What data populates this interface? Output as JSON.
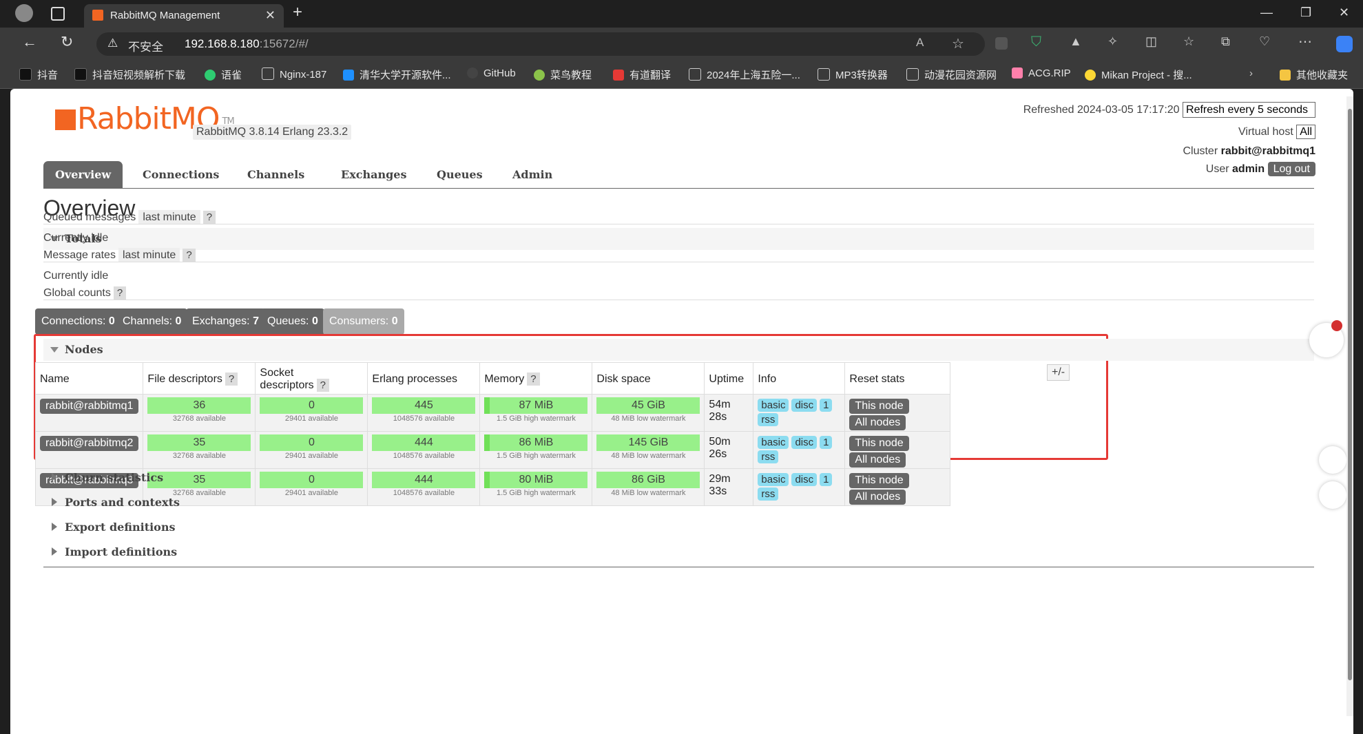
{
  "browser": {
    "tab_title": "RabbitMQ Management",
    "url_warning": "不安全",
    "url_host": "192.168.8.180",
    "url_rest": ":15672/#/",
    "bookmarks": [
      "抖音",
      "抖音短视频解析下载",
      "语雀",
      "Nginx-187",
      "清华大学开源软件...",
      "GitHub",
      "菜鸟教程",
      "有道翻译",
      "2024年上海五险一...",
      "MP3转换器",
      "动漫花园资源网",
      "ACG.RIP",
      "Mikan Project - 搜...",
      "其他收藏夹"
    ]
  },
  "header": {
    "logo_main": "RabbitMQ",
    "logo_tm": "TM",
    "version": "RabbitMQ 3.8.14",
    "erlang": "Erlang 23.3.2",
    "refreshed_label": "Refreshed 2024-03-05 17:17:20",
    "refresh_select": "Refresh every 5 seconds",
    "vhost_label": "Virtual host",
    "vhost_select": "All",
    "cluster_label": "Cluster",
    "cluster_value": "rabbit@rabbitmq1",
    "user_label": "User",
    "user_value": "admin",
    "logout": "Log out"
  },
  "tabs": [
    "Overview",
    "Connections",
    "Channels",
    "Exchanges",
    "Queues",
    "Admin"
  ],
  "page_title": "Overview",
  "totals": {
    "title": "Totals",
    "queued_label": "Queued messages",
    "queued_range": "last minute",
    "help": "?",
    "idle1": "Currently idle",
    "rates_label": "Message rates",
    "rates_range": "last minute",
    "idle2": "Currently idle",
    "global_label": "Global counts"
  },
  "counts": [
    {
      "label": "Connections:",
      "value": "0"
    },
    {
      "label": "Channels:",
      "value": "0"
    },
    {
      "label": "Exchanges:",
      "value": "7"
    },
    {
      "label": "Queues:",
      "value": "0"
    },
    {
      "label": "Consumers:",
      "value": "0"
    }
  ],
  "nodes": {
    "title": "Nodes",
    "columns": [
      "Name",
      "File descriptors",
      "Socket descriptors",
      "Erlang processes",
      "Memory",
      "Disk space",
      "Uptime",
      "Info",
      "Reset stats"
    ],
    "plusminus": "+/-",
    "rows": [
      {
        "name": "rabbit@rabbitmq1",
        "fd": "36",
        "fd_sub": "32768 available",
        "sock": "0",
        "sock_sub": "29401 available",
        "proc": "445",
        "proc_sub": "1048576 available",
        "mem": "87 MiB",
        "mem_sub": "1.5 GiB high watermark",
        "disk": "45 GiB",
        "disk_sub": "48 MiB low watermark",
        "uptime": "54m 28s"
      },
      {
        "name": "rabbit@rabbitmq2",
        "fd": "35",
        "fd_sub": "32768 available",
        "sock": "0",
        "sock_sub": "29401 available",
        "proc": "444",
        "proc_sub": "1048576 available",
        "mem": "86 MiB",
        "mem_sub": "1.5 GiB high watermark",
        "disk": "145 GiB",
        "disk_sub": "48 MiB low watermark",
        "uptime": "50m 26s"
      },
      {
        "name": "rabbit@rabbitmq3",
        "fd": "35",
        "fd_sub": "32768 available",
        "sock": "0",
        "sock_sub": "29401 available",
        "proc": "444",
        "proc_sub": "1048576 available",
        "mem": "80 MiB",
        "mem_sub": "1.5 GiB high watermark",
        "disk": "86 GiB",
        "disk_sub": "48 MiB low watermark",
        "uptime": "29m 33s"
      }
    ],
    "info_badges": [
      "basic",
      "disc",
      "1",
      "rss"
    ],
    "reset_buttons": [
      "This node",
      "All nodes"
    ]
  },
  "sections": [
    "Churn statistics",
    "Ports and contexts",
    "Export definitions",
    "Import definitions"
  ]
}
